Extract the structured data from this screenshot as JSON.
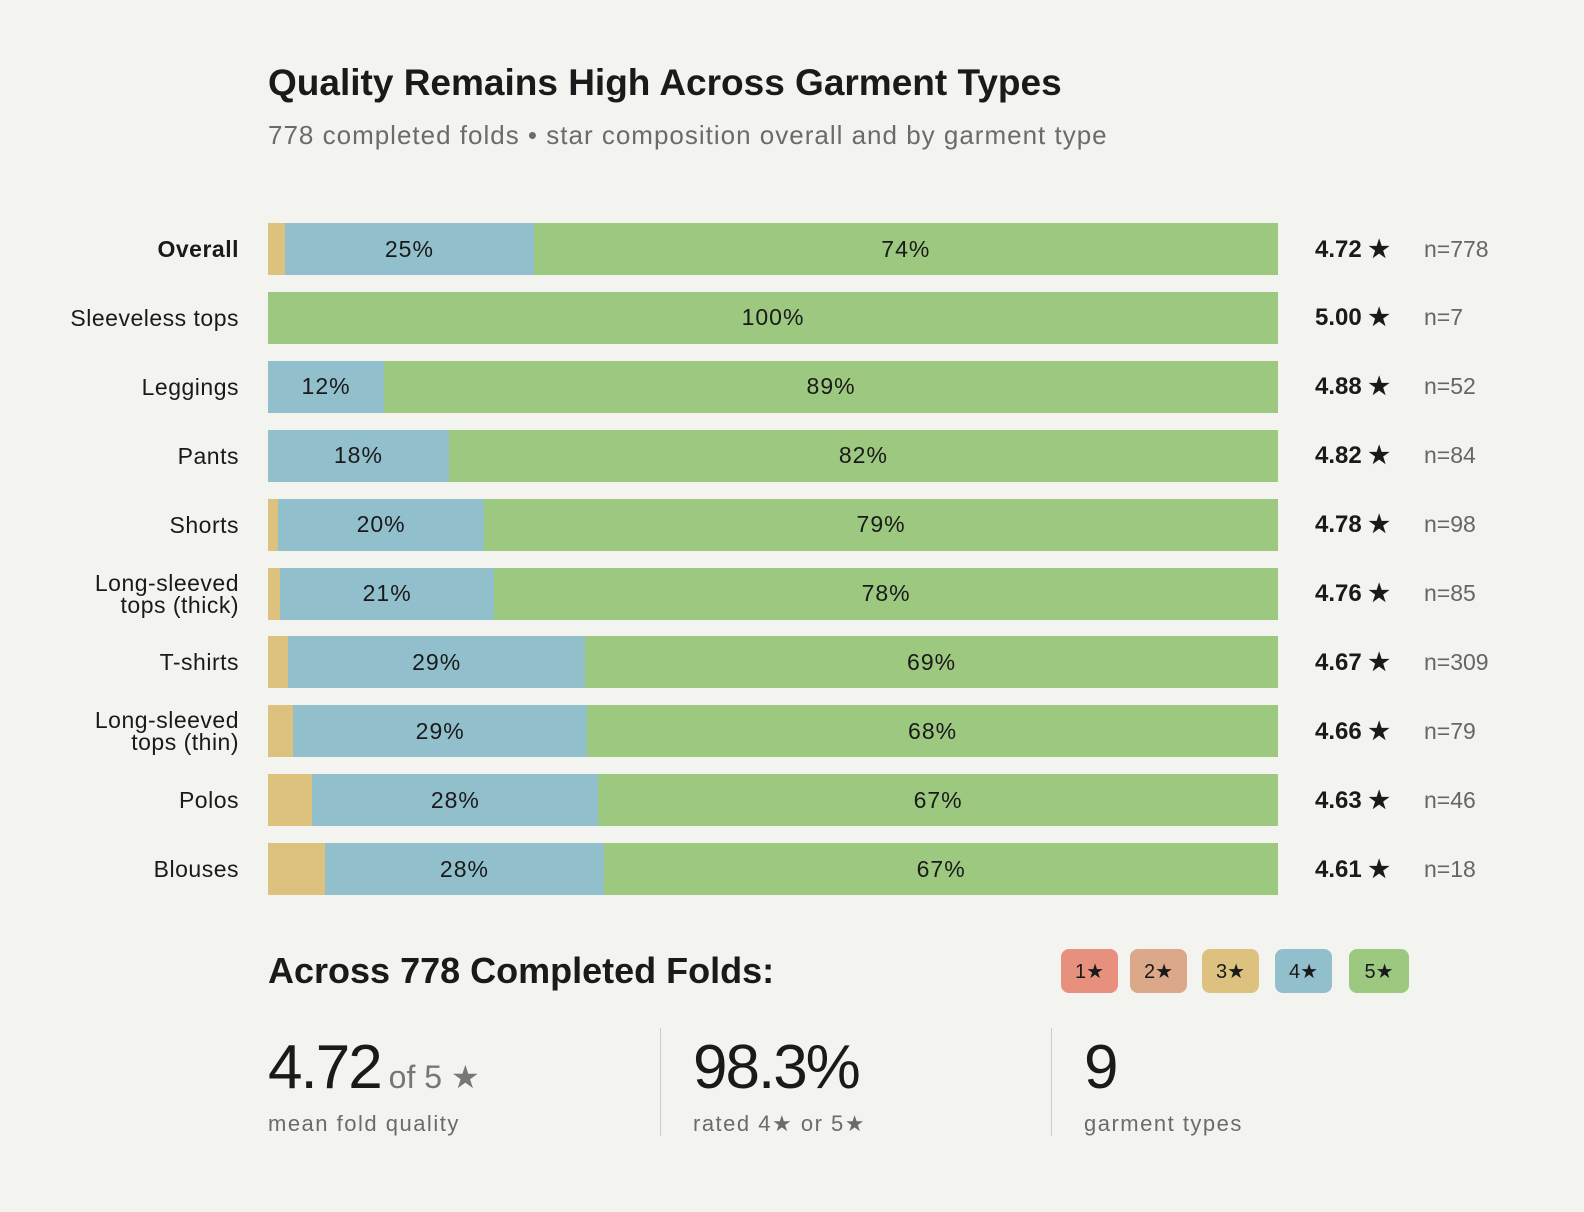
{
  "chart_data": {
    "type": "stacked-bar-horizontal",
    "title": "Quality Remains High Across Garment Types",
    "subtitle": "778 completed folds • star composition overall and by garment type",
    "categories": [
      "Overall",
      "Sleeveless tops",
      "Leggings",
      "Pants",
      "Shorts",
      "Long-sleeved tops (thick)",
      "T-shirts",
      "Long-sleeved tops (thin)",
      "Polos",
      "Blouses"
    ],
    "xlim": [
      0,
      100
    ],
    "series": [
      {
        "name": "1★",
        "color": "#e8907e",
        "values": [
          0,
          0,
          0,
          0,
          0,
          0,
          0,
          0,
          0,
          0
        ]
      },
      {
        "name": "2★",
        "color": "#dba88a",
        "values": [
          0,
          0,
          0,
          0,
          0,
          0,
          0,
          0,
          0,
          0
        ]
      },
      {
        "name": "3★",
        "color": "#dcc27e",
        "values": [
          1.7,
          0,
          0,
          0,
          1.0,
          1.2,
          2.0,
          2.5,
          4.4,
          5.6
        ]
      },
      {
        "name": "4★",
        "color": "#92bfcc",
        "values": [
          24.6,
          0,
          11.5,
          17.9,
          20.4,
          21.2,
          29.4,
          29.1,
          28.3,
          27.7
        ],
        "value_labels": [
          "25%",
          null,
          "12%",
          "18%",
          "20%",
          "21%",
          "29%",
          "29%",
          "28%",
          "28%"
        ]
      },
      {
        "name": "5★",
        "color": "#9dc880",
        "values": [
          73.7,
          100,
          88.5,
          82.1,
          78.6,
          77.6,
          68.6,
          68.4,
          67.3,
          66.7
        ],
        "value_labels": [
          "74%",
          "100%",
          "89%",
          "82%",
          "79%",
          "78%",
          "69%",
          "68%",
          "67%",
          "67%"
        ]
      }
    ],
    "scores": [
      "4.72 ★",
      "5.00 ★",
      "4.88 ★",
      "4.82 ★",
      "4.78 ★",
      "4.76 ★",
      "4.67 ★",
      "4.66 ★",
      "4.63 ★",
      "4.61 ★"
    ],
    "counts": [
      "n=778",
      "n=7",
      "n=52",
      "n=84",
      "n=98",
      "n=85",
      "n=309",
      "n=79",
      "n=46",
      "n=18"
    ]
  },
  "summary": {
    "heading": "Across 778 Completed Folds:",
    "stats": [
      {
        "value": "4.72",
        "suffix": "of 5 ★",
        "label": "mean fold quality"
      },
      {
        "value": "98.3%",
        "label": "rated 4★ or 5★"
      },
      {
        "value": "9",
        "label": "garment types"
      }
    ]
  }
}
